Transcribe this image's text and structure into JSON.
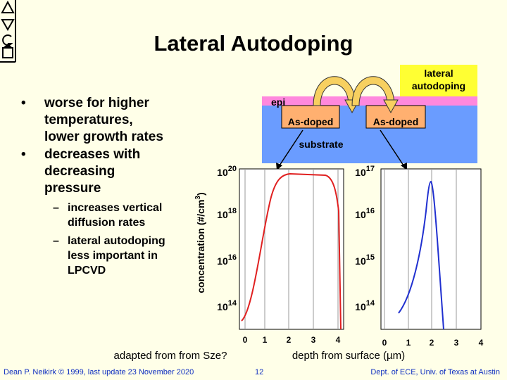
{
  "header": {
    "title": "Lateral Autodoping"
  },
  "bullets": [
    {
      "lines": [
        "worse for higher",
        "temperatures,",
        "lower growth rates"
      ]
    },
    {
      "lines": [
        "decreases with",
        "decreasing",
        "pressure"
      ],
      "sub": [
        {
          "lines": [
            "increases vertical",
            "diffusion rates"
          ]
        },
        {
          "lines": [
            "lateral autodoping",
            "less important in",
            "LPCVD"
          ]
        }
      ]
    }
  ],
  "diagram": {
    "callout": [
      "lateral",
      "autodoping"
    ],
    "epi": "epi",
    "doped_left": "As-doped",
    "doped_right": "As-doped",
    "substrate": "substrate"
  },
  "plots": {
    "y_label": {
      "text": "concentration (#/cm",
      "exp": "3",
      "close": ")"
    },
    "left": {
      "yticks": [
        {
          "base": "10",
          "exp": "20"
        },
        {
          "base": "10",
          "exp": "18"
        },
        {
          "base": "10",
          "exp": "16"
        },
        {
          "base": "10",
          "exp": "14"
        }
      ],
      "xticks": [
        "0",
        "1",
        "2",
        "3",
        "4"
      ]
    },
    "right": {
      "yticks": [
        {
          "base": "10",
          "exp": "17"
        },
        {
          "base": "10",
          "exp": "16"
        },
        {
          "base": "10",
          "exp": "15"
        },
        {
          "base": "10",
          "exp": "14"
        }
      ],
      "xticks": [
        "0",
        "1",
        "2",
        "3",
        "4"
      ]
    },
    "x_label": "depth from surface (µm)",
    "source": "adapted from from Sze?"
  },
  "footer": {
    "left": "Dean P. Neikirk © 1999, last update 23 November 2020",
    "page": "12",
    "right": "Dept. of ECE, Univ. of Texas at Austin"
  }
}
